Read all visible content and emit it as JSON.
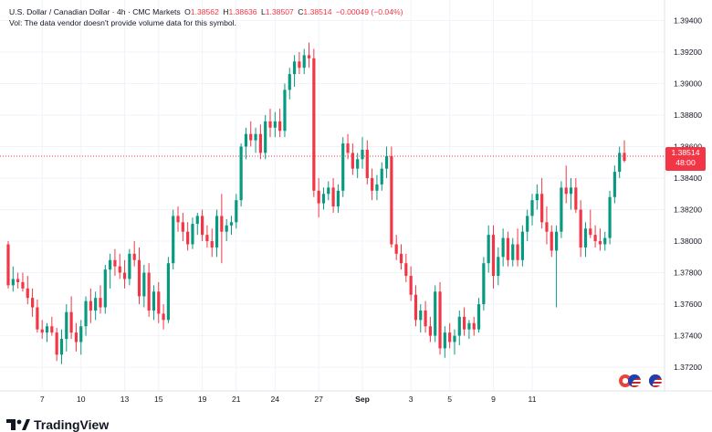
{
  "header": {
    "symbol": "U.S. Dollar / Canadian Dollar",
    "interval": "4h",
    "source": "CMC Markets",
    "o_label": "O",
    "o_value": "1.38562",
    "h_label": "H",
    "h_value": "1.38636",
    "l_label": "L",
    "l_value": "1.38507",
    "c_label": "C",
    "c_value": "1.38514",
    "change": "−0.00049 (−0.04%)",
    "vol_notice": "Vol: The data vendor doesn't provide volume data for this symbol."
  },
  "price_tag": {
    "price": "1.38514",
    "countdown": "48:00"
  },
  "logo": {
    "text": "TradingView"
  },
  "colors": {
    "up": "#089981",
    "down": "#f23645",
    "grid": "#f0f3fa",
    "text": "#131722"
  },
  "chart_data": {
    "type": "candlestick",
    "x_ticks": [
      "7",
      "10",
      "13",
      "15",
      "19",
      "21",
      "24",
      "27",
      "Sep",
      "3",
      "5",
      "9",
      "11"
    ],
    "y_ticks": [
      "1.39400",
      "1.39200",
      "1.39000",
      "1.38800",
      "1.38600",
      "1.38400",
      "1.38200",
      "1.38000",
      "1.37800",
      "1.37600",
      "1.37400",
      "1.37200"
    ],
    "ylim": [
      1.3705,
      1.3953
    ],
    "last_price": 1.38514,
    "grid": true,
    "candles": [
      [
        1.3798,
        1.38,
        1.377,
        1.3772
      ],
      [
        1.3772,
        1.3784,
        1.3768,
        1.3776
      ],
      [
        1.3776,
        1.378,
        1.377,
        1.3774
      ],
      [
        1.3774,
        1.378,
        1.3768,
        1.377
      ],
      [
        1.377,
        1.3778,
        1.376,
        1.3764
      ],
      [
        1.3764,
        1.377,
        1.3752,
        1.3758
      ],
      [
        1.3758,
        1.3763,
        1.3742,
        1.3744
      ],
      [
        1.3744,
        1.375,
        1.3738,
        1.3742
      ],
      [
        1.3742,
        1.3748,
        1.3736,
        1.3746
      ],
      [
        1.3746,
        1.3752,
        1.374,
        1.3742
      ],
      [
        1.3742,
        1.3745,
        1.3724,
        1.3728
      ],
      [
        1.3728,
        1.3744,
        1.3722,
        1.3738
      ],
      [
        1.3738,
        1.376,
        1.373,
        1.3755
      ],
      [
        1.3755,
        1.3765,
        1.3738,
        1.3742
      ],
      [
        1.3742,
        1.3748,
        1.373,
        1.3736
      ],
      [
        1.3736,
        1.375,
        1.3728,
        1.3746
      ],
      [
        1.3746,
        1.3765,
        1.374,
        1.3762
      ],
      [
        1.3762,
        1.377,
        1.3748,
        1.3756
      ],
      [
        1.3756,
        1.3768,
        1.375,
        1.3764
      ],
      [
        1.3764,
        1.3772,
        1.3754,
        1.3758
      ],
      [
        1.3758,
        1.3785,
        1.3754,
        1.3782
      ],
      [
        1.3782,
        1.3792,
        1.377,
        1.3788
      ],
      [
        1.3788,
        1.3795,
        1.3778,
        1.3784
      ],
      [
        1.3784,
        1.3792,
        1.3776,
        1.378
      ],
      [
        1.378,
        1.3788,
        1.377,
        1.3776
      ],
      [
        1.3776,
        1.3795,
        1.3772,
        1.3792
      ],
      [
        1.3792,
        1.38,
        1.3784,
        1.3788
      ],
      [
        1.3788,
        1.3796,
        1.376,
        1.3765
      ],
      [
        1.3765,
        1.3785,
        1.3758,
        1.378
      ],
      [
        1.378,
        1.3786,
        1.3752,
        1.3756
      ],
      [
        1.3756,
        1.3772,
        1.375,
        1.3768
      ],
      [
        1.3768,
        1.3774,
        1.3748,
        1.3754
      ],
      [
        1.3754,
        1.376,
        1.3744,
        1.375
      ],
      [
        1.375,
        1.379,
        1.3748,
        1.3786
      ],
      [
        1.3786,
        1.382,
        1.3782,
        1.3816
      ],
      [
        1.3816,
        1.3822,
        1.3806,
        1.3812
      ],
      [
        1.3812,
        1.3818,
        1.38,
        1.3806
      ],
      [
        1.3806,
        1.3812,
        1.3794,
        1.3798
      ],
      [
        1.3798,
        1.3815,
        1.3795,
        1.3811
      ],
      [
        1.3811,
        1.3818,
        1.3804,
        1.3816
      ],
      [
        1.3816,
        1.382,
        1.38,
        1.3804
      ],
      [
        1.3804,
        1.381,
        1.3796,
        1.38
      ],
      [
        1.38,
        1.3808,
        1.379,
        1.3796
      ],
      [
        1.3796,
        1.382,
        1.379,
        1.3816
      ],
      [
        1.3816,
        1.383,
        1.3786,
        1.3806
      ],
      [
        1.3806,
        1.3814,
        1.38,
        1.381
      ],
      [
        1.381,
        1.3816,
        1.3804,
        1.3812
      ],
      [
        1.3812,
        1.383,
        1.3808,
        1.3826
      ],
      [
        1.3826,
        1.3862,
        1.3822,
        1.386
      ],
      [
        1.386,
        1.3872,
        1.3852,
        1.3868
      ],
      [
        1.3868,
        1.3876,
        1.386,
        1.3864
      ],
      [
        1.3864,
        1.3872,
        1.3856,
        1.3868
      ],
      [
        1.3868,
        1.3874,
        1.3852,
        1.3856
      ],
      [
        1.3856,
        1.388,
        1.3852,
        1.3876
      ],
      [
        1.3876,
        1.3884,
        1.3866,
        1.3872
      ],
      [
        1.3872,
        1.3882,
        1.3866,
        1.3876
      ],
      [
        1.3876,
        1.3884,
        1.3866,
        1.387
      ],
      [
        1.387,
        1.39,
        1.3866,
        1.3896
      ],
      [
        1.3896,
        1.391,
        1.389,
        1.3906
      ],
      [
        1.3906,
        1.3918,
        1.3898,
        1.3914
      ],
      [
        1.3914,
        1.392,
        1.3906,
        1.391
      ],
      [
        1.391,
        1.3922,
        1.3906,
        1.3918
      ],
      [
        1.3918,
        1.3926,
        1.391,
        1.3916
      ],
      [
        1.3916,
        1.3922,
        1.3828,
        1.3832
      ],
      [
        1.3832,
        1.384,
        1.3815,
        1.3824
      ],
      [
        1.3824,
        1.3834,
        1.382,
        1.383
      ],
      [
        1.383,
        1.3838,
        1.3826,
        1.3834
      ],
      [
        1.3834,
        1.384,
        1.3818,
        1.3822
      ],
      [
        1.3822,
        1.3836,
        1.3818,
        1.3832
      ],
      [
        1.3832,
        1.3866,
        1.3828,
        1.3862
      ],
      [
        1.3862,
        1.3868,
        1.3852,
        1.3856
      ],
      [
        1.3856,
        1.3862,
        1.3842,
        1.3846
      ],
      [
        1.3846,
        1.3856,
        1.384,
        1.3852
      ],
      [
        1.3852,
        1.3866,
        1.3846,
        1.3858
      ],
      [
        1.3858,
        1.3864,
        1.3836,
        1.384
      ],
      [
        1.384,
        1.3846,
        1.3826,
        1.3832
      ],
      [
        1.3832,
        1.3842,
        1.3826,
        1.3836
      ],
      [
        1.3836,
        1.385,
        1.3832,
        1.3846
      ],
      [
        1.3846,
        1.386,
        1.384,
        1.3854
      ],
      [
        1.3854,
        1.386,
        1.3796,
        1.3798
      ],
      [
        1.3798,
        1.3804,
        1.3788,
        1.3792
      ],
      [
        1.3792,
        1.3798,
        1.3782,
        1.3786
      ],
      [
        1.3786,
        1.3792,
        1.3774,
        1.3778
      ],
      [
        1.3778,
        1.3784,
        1.3762,
        1.3766
      ],
      [
        1.3766,
        1.3772,
        1.3746,
        1.375
      ],
      [
        1.375,
        1.376,
        1.3742,
        1.3756
      ],
      [
        1.3756,
        1.3762,
        1.3742,
        1.3746
      ],
      [
        1.3746,
        1.3752,
        1.3736,
        1.374
      ],
      [
        1.374,
        1.3772,
        1.3736,
        1.3768
      ],
      [
        1.3768,
        1.3774,
        1.3728,
        1.3732
      ],
      [
        1.3732,
        1.3746,
        1.3726,
        1.3742
      ],
      [
        1.3742,
        1.3748,
        1.3732,
        1.3736
      ],
      [
        1.3736,
        1.3744,
        1.3728,
        1.374
      ],
      [
        1.374,
        1.3756,
        1.3734,
        1.3752
      ],
      [
        1.3752,
        1.3758,
        1.374,
        1.3744
      ],
      [
        1.3744,
        1.375,
        1.3738,
        1.3748
      ],
      [
        1.3748,
        1.3752,
        1.374,
        1.3744
      ],
      [
        1.3744,
        1.3764,
        1.3742,
        1.376
      ],
      [
        1.376,
        1.379,
        1.3756,
        1.3786
      ],
      [
        1.3786,
        1.381,
        1.378,
        1.3804
      ],
      [
        1.3804,
        1.381,
        1.377,
        1.3778
      ],
      [
        1.3778,
        1.3796,
        1.3772,
        1.379
      ],
      [
        1.379,
        1.3808,
        1.3784,
        1.3802
      ],
      [
        1.3802,
        1.3806,
        1.3784,
        1.3788
      ],
      [
        1.3788,
        1.3802,
        1.3784,
        1.3798
      ],
      [
        1.3798,
        1.3808,
        1.3784,
        1.3788
      ],
      [
        1.3788,
        1.381,
        1.3784,
        1.3806
      ],
      [
        1.3806,
        1.382,
        1.38,
        1.3816
      ],
      [
        1.3816,
        1.383,
        1.381,
        1.3826
      ],
      [
        1.3826,
        1.3836,
        1.382,
        1.383
      ],
      [
        1.383,
        1.384,
        1.3808,
        1.3812
      ],
      [
        1.3812,
        1.3822,
        1.3798,
        1.3806
      ],
      [
        1.3806,
        1.381,
        1.379,
        1.3794
      ],
      [
        1.3794,
        1.381,
        1.3758,
        1.3806
      ],
      [
        1.3806,
        1.3838,
        1.3802,
        1.3834
      ],
      [
        1.3834,
        1.3848,
        1.3824,
        1.383
      ],
      [
        1.383,
        1.384,
        1.382,
        1.3834
      ],
      [
        1.3834,
        1.384,
        1.3818,
        1.382
      ],
      [
        1.382,
        1.3826,
        1.379,
        1.3796
      ],
      [
        1.3796,
        1.3812,
        1.379,
        1.3808
      ],
      [
        1.3808,
        1.382,
        1.3802,
        1.3804
      ],
      [
        1.3804,
        1.381,
        1.3796,
        1.38
      ],
      [
        1.38,
        1.3808,
        1.3794,
        1.3798
      ],
      [
        1.3798,
        1.3806,
        1.3794,
        1.3802
      ],
      [
        1.3802,
        1.3832,
        1.3798,
        1.3828
      ],
      [
        1.3828,
        1.3848,
        1.3824,
        1.3844
      ],
      [
        1.3844,
        1.386,
        1.384,
        1.3856
      ],
      [
        1.3856,
        1.3864,
        1.385,
        1.3851
      ]
    ]
  }
}
